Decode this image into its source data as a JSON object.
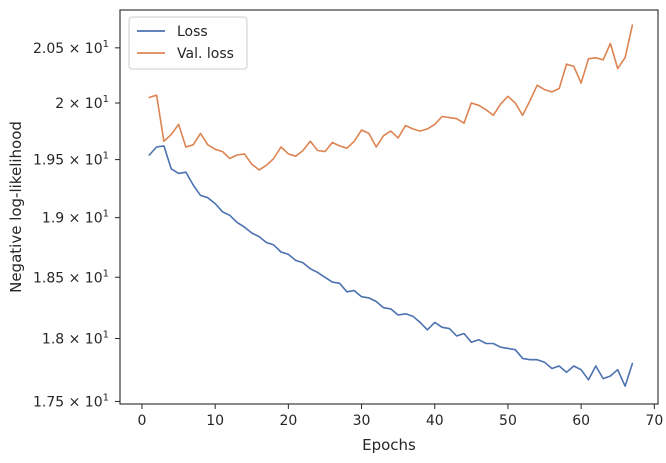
{
  "chart_data": {
    "type": "line",
    "title": "",
    "xlabel": "Epochs",
    "ylabel": "Negative log-likelihood",
    "xlim": [
      -3,
      70.5
    ],
    "ylim": [
      17.48,
      20.85
    ],
    "y_scale": "log",
    "grid": false,
    "legend_position": "top-left",
    "x_ticks": [
      0,
      10,
      20,
      30,
      40,
      50,
      60,
      70
    ],
    "x_tick_labels": [
      "0",
      "10",
      "20",
      "30",
      "40",
      "50",
      "60",
      "70"
    ],
    "y_ticks": [
      {
        "value": 17.5,
        "mantissa": "1.75"
      },
      {
        "value": 18.0,
        "mantissa": "1.8"
      },
      {
        "value": 18.5,
        "mantissa": "1.85"
      },
      {
        "value": 19.0,
        "mantissa": "1.9"
      },
      {
        "value": 19.5,
        "mantissa": "1.95"
      },
      {
        "value": 20.0,
        "mantissa": "2"
      },
      {
        "value": 20.5,
        "mantissa": "2.05"
      }
    ],
    "y_tick_times": "×",
    "y_tick_base": "10",
    "y_tick_exp": "1",
    "x": [
      1,
      2,
      3,
      4,
      5,
      6,
      7,
      8,
      9,
      10,
      11,
      12,
      13,
      14,
      15,
      16,
      17,
      18,
      19,
      20,
      21,
      22,
      23,
      24,
      25,
      26,
      27,
      28,
      29,
      30,
      31,
      32,
      33,
      34,
      35,
      36,
      37,
      38,
      39,
      40,
      41,
      42,
      43,
      44,
      45,
      46,
      47,
      48,
      49,
      50,
      51,
      52,
      53,
      54,
      55,
      56,
      57,
      58,
      59,
      60,
      61,
      62,
      63,
      64,
      65,
      66,
      67
    ],
    "series": [
      {
        "name": "Loss",
        "color": "#4c72b0",
        "values": [
          19.54,
          19.61,
          19.62,
          19.42,
          19.38,
          19.39,
          19.28,
          19.19,
          19.17,
          19.12,
          19.05,
          19.02,
          18.96,
          18.92,
          18.87,
          18.84,
          18.79,
          18.77,
          18.71,
          18.69,
          18.64,
          18.62,
          18.57,
          18.54,
          18.5,
          18.46,
          18.45,
          18.38,
          18.39,
          18.34,
          18.33,
          18.3,
          18.25,
          18.24,
          18.19,
          18.2,
          18.18,
          18.13,
          18.07,
          18.13,
          18.09,
          18.08,
          18.02,
          18.04,
          17.97,
          17.99,
          17.96,
          17.96,
          17.93,
          17.92,
          17.91,
          17.84,
          17.83,
          17.83,
          17.81,
          17.76,
          17.78,
          17.73,
          17.78,
          17.75,
          17.67,
          17.78,
          17.68,
          17.7,
          17.75,
          17.62,
          17.8
        ]
      },
      {
        "name": "Val. loss",
        "color": "#dd8452",
        "values": [
          20.05,
          20.07,
          19.66,
          19.72,
          19.81,
          19.61,
          19.63,
          19.73,
          19.63,
          19.59,
          19.57,
          19.51,
          19.54,
          19.55,
          19.46,
          19.41,
          19.45,
          19.51,
          19.61,
          19.55,
          19.53,
          19.58,
          19.66,
          19.58,
          19.57,
          19.65,
          19.62,
          19.6,
          19.66,
          19.76,
          19.73,
          19.61,
          19.71,
          19.75,
          19.69,
          19.8,
          19.77,
          19.75,
          19.77,
          19.81,
          19.88,
          19.87,
          19.86,
          19.82,
          20.0,
          19.98,
          19.94,
          19.89,
          19.99,
          20.06,
          20.0,
          19.89,
          20.02,
          20.16,
          20.12,
          20.1,
          20.13,
          20.35,
          20.33,
          20.18,
          20.4,
          20.41,
          20.39,
          20.54,
          20.31,
          20.41,
          20.71
        ]
      }
    ]
  }
}
